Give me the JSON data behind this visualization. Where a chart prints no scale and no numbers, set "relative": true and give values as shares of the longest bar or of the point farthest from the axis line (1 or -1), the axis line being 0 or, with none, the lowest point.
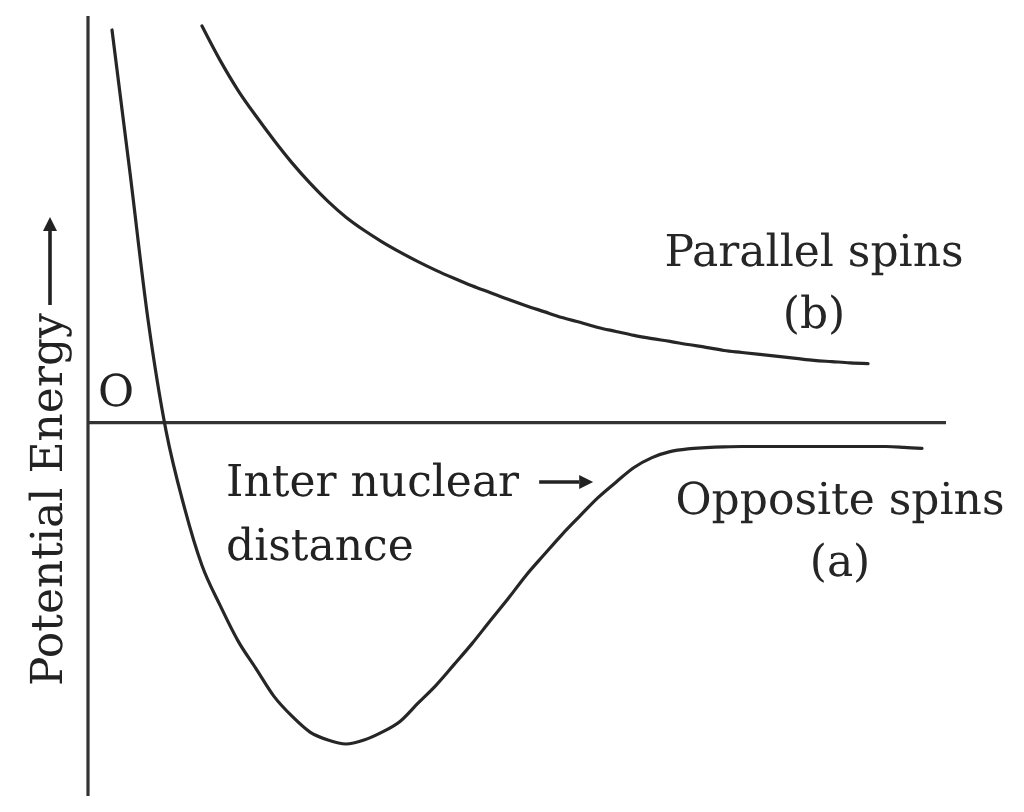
{
  "chart_data": {
    "type": "line",
    "relative": true,
    "tick_labels": false,
    "xlabel": "Inter nuclear distance",
    "ylabel": "Potential Energy",
    "annotations": [
      "O"
    ],
    "categories": [
      null,
      null,
      null,
      null,
      null,
      null,
      null,
      null,
      null,
      null,
      null,
      null,
      null,
      null,
      null,
      null,
      null,
      null,
      null,
      null,
      null,
      null,
      null,
      null,
      null,
      null,
      null,
      null,
      null,
      null,
      null,
      null,
      null,
      null,
      null,
      null,
      null,
      null,
      null,
      null,
      null,
      null,
      null,
      null,
      null,
      null
    ],
    "series": [
      {
        "name": "Opposite spins (a)",
        "color": "#262626",
        "values": [
          0.99,
          0.63,
          0.26,
          -0.02,
          -0.21,
          -0.36,
          -0.46,
          -0.55,
          -0.62,
          -0.69,
          -0.74,
          -0.78,
          -0.8,
          -0.81,
          -0.8,
          -0.78,
          -0.753,
          -0.707,
          -0.662,
          -0.61,
          -0.557,
          -0.5,
          -0.444,
          -0.385,
          -0.333,
          -0.282,
          -0.235,
          -0.189,
          -0.15,
          -0.113,
          -0.088,
          -0.073,
          -0.066,
          -0.063,
          -0.061,
          -0.06,
          -0.06,
          -0.06,
          -0.06,
          -0.06,
          -0.06,
          -0.06,
          -0.06,
          -0.06,
          -0.062,
          -0.065
        ]
      },
      {
        "name": "Parallel spins (b)",
        "color": "#262626",
        "values": [
          null,
          null,
          null,
          null,
          null,
          1,
          0.914,
          0.838,
          0.773,
          0.712,
          0.655,
          0.604,
          0.558,
          0.518,
          0.485,
          0.456,
          0.43,
          0.406,
          0.384,
          0.364,
          0.345,
          0.328,
          0.311,
          0.295,
          0.28,
          0.265,
          0.253,
          0.24,
          0.23,
          0.22,
          0.212,
          0.205,
          0.197,
          0.19,
          0.182,
          0.177,
          0.172,
          0.167,
          0.162,
          0.157,
          0.154,
          0.151,
          0.149,
          null,
          null,
          null
        ]
      }
    ]
  }
}
